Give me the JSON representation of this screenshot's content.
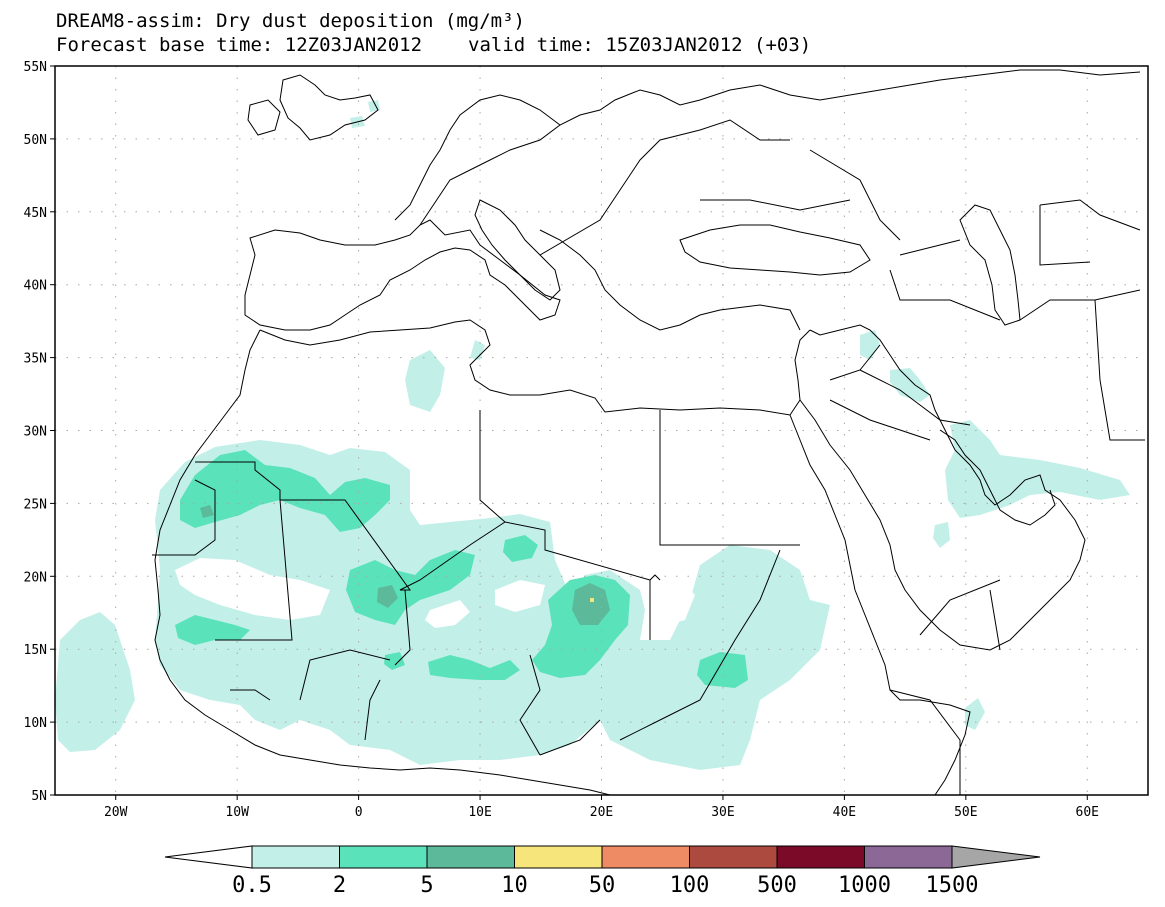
{
  "title": {
    "line1": "DREAM8-assim: Dry dust deposition (mg/m³)",
    "base_time": "Forecast base time: 12Z03JAN2012",
    "valid_time": "valid time: 15Z03JAN2012 (+03)"
  },
  "map": {
    "lat_labels": [
      "55N",
      "50N",
      "45N",
      "40N",
      "35N",
      "30N",
      "25N",
      "20N",
      "15N",
      "10N",
      "5N"
    ],
    "lon_labels": [
      "20W",
      "10W",
      "0",
      "10E",
      "20E",
      "30E",
      "40E",
      "50E",
      "60E"
    ],
    "lon_range": [
      -25,
      65
    ],
    "lat_range": [
      5,
      55
    ],
    "grid": "dotted",
    "land_color": "#ffffff",
    "border_color": "#000000"
  },
  "colorbar": {
    "labels": [
      "0.5",
      "2",
      "5",
      "10",
      "50",
      "100",
      "500",
      "1000",
      "1500"
    ],
    "colors": [
      "#c2f0e9",
      "#5ae2bb",
      "#5cb99a",
      "#f5e57a",
      "#ee8a64",
      "#ac4a3f",
      "#7a0a28",
      "#8c6896",
      "#a6a6a6"
    ]
  }
}
